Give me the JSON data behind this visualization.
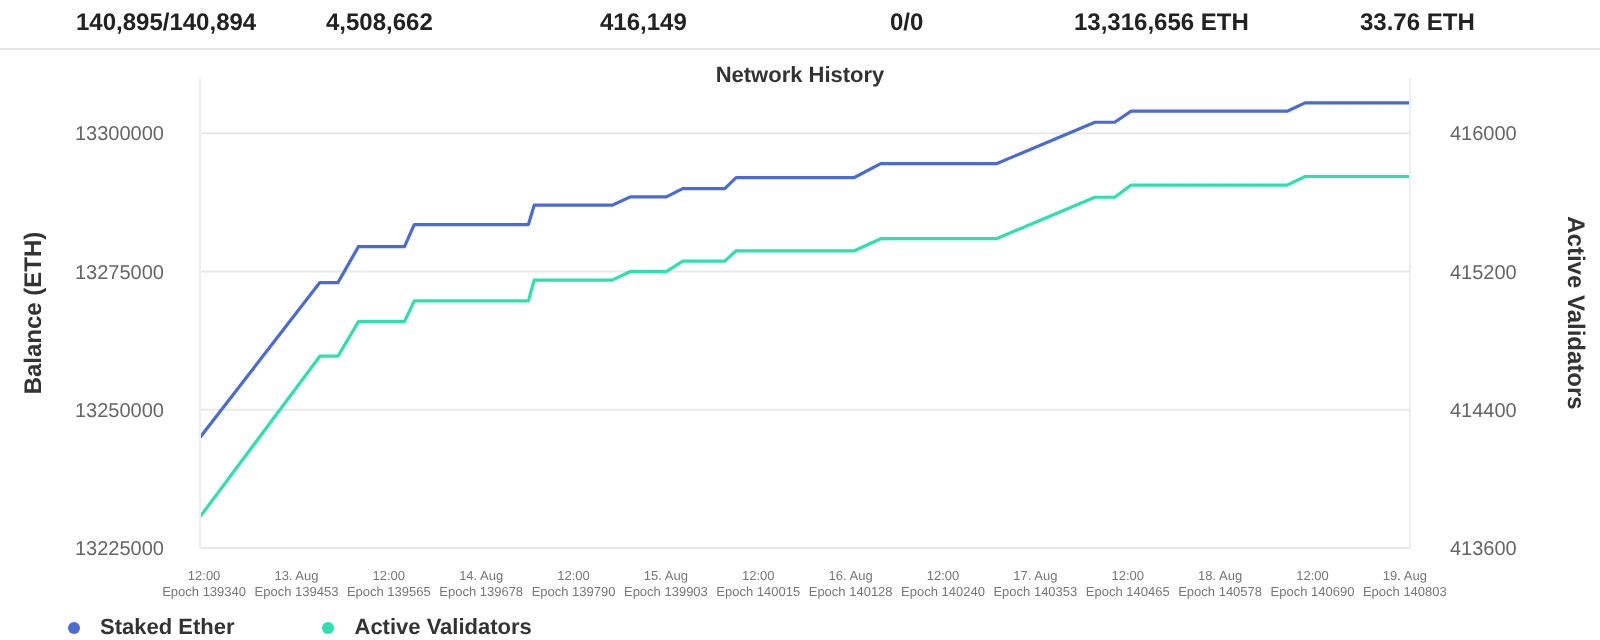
{
  "chart_data": {
    "type": "line",
    "title": "Network History",
    "annotations": [
      "140,895/140,894",
      "4,508,662",
      "416,149",
      "0/0",
      "13,316,656 ETH",
      "33.76 ETH"
    ],
    "ylabel": "Balance (ETH)",
    "y2label": "Active Validators",
    "x": [
      "--08-12T11:28",
      "--08-13T03:02",
      "--08-13T05:23",
      "--08-13T08:03",
      "--08-13T14:02",
      "--08-13T15:18",
      "--08-14T06:08",
      "--08-14T06:53",
      "--08-14T17:01",
      "--08-14T19:22",
      "--08-15T00:03",
      "--08-15T02:11",
      "--08-15T07:38",
      "--08-15T09:07",
      "--08-16T00:29",
      "--08-16T03:54",
      "--08-16T18:56",
      "--08-17T07:44",
      "--08-17T10:18",
      "--08-17T12:26",
      "--08-18T08:42",
      "--08-18T11:02",
      "--08-19T00:35"
    ],
    "series": [
      {
        "name": "Staked Ether",
        "color": "#4a6bd4",
        "values": [
          13245000,
          13273000,
          13273000,
          13279500,
          13279500,
          13283500,
          13283500,
          13287000,
          13287000,
          13288500,
          13288500,
          13290000,
          13290000,
          13292000,
          13292000,
          13294500,
          13294500,
          13302000,
          13302000,
          13304000,
          13304000,
          13305500,
          13305500
        ]
      },
      {
        "name": "Active Validators",
        "color": "#2ee0ae",
        "axis": "y2",
        "values": [
          413780,
          414710,
          414710,
          414910,
          414910,
          415030,
          415030,
          415150,
          415150,
          415200,
          415200,
          415260,
          415260,
          415320,
          415320,
          415390,
          415390,
          415630,
          415630,
          415700,
          415700,
          415750,
          415750
        ]
      }
    ],
    "xlim": [
      "--08-12T11:28",
      "--08-19T00:40"
    ],
    "xticks": [
      {
        "value": "--08-12T12:00",
        "label": "12:00\nEpoch 139340"
      },
      {
        "value": "--08-13T00:00",
        "label": "13. Aug\nEpoch 139453"
      },
      {
        "value": "--08-13T12:00",
        "label": "12:00\nEpoch 139565"
      },
      {
        "value": "--08-14T00:00",
        "label": "14. Aug\nEpoch 139678"
      },
      {
        "value": "--08-14T12:00",
        "label": "12:00\nEpoch 139790"
      },
      {
        "value": "--08-15T00:00",
        "label": "15. Aug\nEpoch 139903"
      },
      {
        "value": "--08-15T12:00",
        "label": "12:00\nEpoch 140015"
      },
      {
        "value": "--08-16T00:00",
        "label": "16. Aug\nEpoch 140128"
      },
      {
        "value": "--08-16T12:00",
        "label": "12:00\nEpoch 140240"
      },
      {
        "value": "--08-17T00:00",
        "label": "17. Aug\nEpoch 140353"
      },
      {
        "value": "--08-17T12:00",
        "label": "12:00\nEpoch 140465"
      },
      {
        "value": "--08-18T00:00",
        "label": "18. Aug\nEpoch 140578"
      },
      {
        "value": "--08-18T12:00",
        "label": "12:00\nEpoch 140690"
      },
      {
        "value": "--08-19T00:00",
        "label": "19. Aug\nEpoch 140803"
      }
    ],
    "ylim": [
      13225000,
      13310000
    ],
    "yticks": [
      13225000,
      13250000,
      13275000,
      13300000
    ],
    "y2lim": [
      413600,
      416320
    ],
    "y2ticks": [
      413600,
      414400,
      415200,
      416000
    ],
    "grid": "y",
    "legend": "bottom left",
    "marker": "none",
    "line_style": "solid"
  }
}
